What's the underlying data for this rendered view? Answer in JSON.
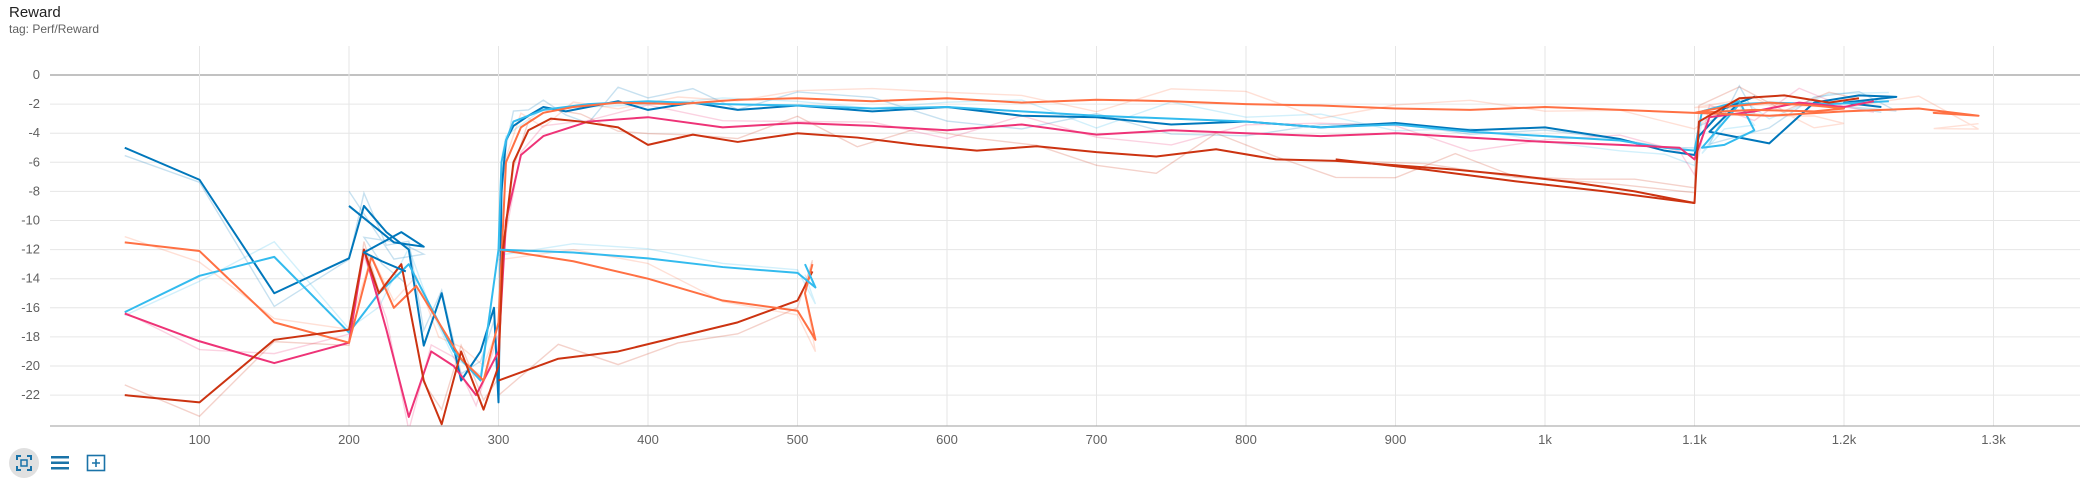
{
  "chart_data": {
    "type": "line",
    "title": "Reward",
    "subtitle": "tag: Perf/Reward",
    "xlim": [
      0,
      1360
    ],
    "ylim": [
      -24,
      2
    ],
    "x_ticks": [
      100,
      200,
      300,
      400,
      500,
      600,
      700,
      800,
      900,
      1000,
      1100,
      1200,
      1300
    ],
    "x_tick_labels": [
      "100",
      "200",
      "300",
      "400",
      "500",
      "600",
      "700",
      "800",
      "900",
      "1k",
      "1.1k",
      "1.2k",
      "1.3k"
    ],
    "y_ticks": [
      0,
      -2,
      -4,
      -6,
      -8,
      -10,
      -12,
      -14,
      -16,
      -18,
      -20,
      -22
    ],
    "y_tick_labels": [
      "0",
      "-2",
      "-4",
      "-6",
      "-8",
      "-10",
      "-12",
      "-14",
      "-16",
      "-18",
      "-20",
      "-22"
    ],
    "grid": true,
    "legend": "none",
    "series": [
      {
        "color": "#0077bb",
        "x": [
          50,
          100,
          150,
          200,
          210,
          225,
          240,
          250,
          262,
          275,
          288,
          297,
          300,
          302,
          305,
          310,
          320,
          330,
          345,
          360,
          380,
          400,
          430,
          460,
          500,
          550,
          600,
          650,
          700,
          750,
          800,
          850,
          900,
          950,
          1000,
          1050,
          1080,
          1100,
          1103,
          1120,
          1140,
          1130,
          1110,
          1150,
          1180,
          1210,
          1235,
          1200,
          1225
        ],
        "y": [
          -5,
          -7.2,
          -15,
          -12.6,
          -9,
          -10.8,
          -12,
          -18.6,
          -15,
          -21,
          -19,
          -16,
          -22.5,
          -8,
          -4.5,
          -3.5,
          -2.8,
          -2.2,
          -2.5,
          -2.2,
          -1.8,
          -2.4,
          -1.9,
          -2.4,
          -2.1,
          -2.5,
          -2.2,
          -2.8,
          -2.9,
          -3.4,
          -3.2,
          -3.6,
          -3.3,
          -3.8,
          -3.6,
          -4.4,
          -5.2,
          -5.5,
          -4.2,
          -2.3,
          -1.5,
          -1.9,
          -3.9,
          -4.7,
          -1.9,
          -1.4,
          -1.5,
          -1.9,
          -2.2
        ]
      },
      {
        "color": "#33bbee",
        "x": [
          50,
          100,
          150,
          200,
          220,
          240,
          255,
          270,
          288,
          300,
          302,
          305,
          310,
          330,
          360,
          400,
          450,
          500,
          550,
          600,
          650,
          700,
          750,
          800,
          850,
          900,
          950,
          1000,
          1050,
          1080,
          1100,
          1105,
          1130,
          1140,
          1120,
          1105,
          1130,
          1150,
          1190,
          1230
        ],
        "y": [
          -16.3,
          -13.8,
          -12.5,
          -17.7,
          -15,
          -13,
          -16,
          -19,
          -21,
          -12,
          -6,
          -4.5,
          -3.2,
          -2.4,
          -2.0,
          -1.8,
          -2.0,
          -2.1,
          -2.3,
          -2.2,
          -2.5,
          -2.8,
          -3.0,
          -3.2,
          -3.6,
          -3.4,
          -3.9,
          -4.2,
          -4.5,
          -5.0,
          -5.2,
          -2.5,
          -1.8,
          -3.8,
          -4.8,
          -5.0,
          -2.0,
          -1.9,
          -2.0,
          -1.8
        ]
      },
      {
        "color": "#ee3377",
        "x": [
          50,
          100,
          150,
          200,
          210,
          225,
          240,
          255,
          270,
          285,
          300,
          305,
          315,
          330,
          360,
          400,
          450,
          500,
          550,
          600,
          650,
          700,
          750,
          800,
          850,
          900,
          950,
          1000,
          1050,
          1090,
          1100,
          1110,
          1140,
          1170,
          1200,
          1220
        ],
        "y": [
          -16.4,
          -18.3,
          -19.8,
          -18.4,
          -12,
          -17.5,
          -23.5,
          -19,
          -20,
          -22,
          -19,
          -10,
          -5.5,
          -4.2,
          -3.2,
          -2.9,
          -3.6,
          -3.3,
          -3.5,
          -3.8,
          -3.4,
          -4.1,
          -3.8,
          -4.0,
          -4.2,
          -4.0,
          -4.3,
          -4.6,
          -4.8,
          -5.0,
          -5.8,
          -2.9,
          -2.5,
          -1.9,
          -2.2,
          -1.8
        ]
      },
      {
        "color": "#ff7043",
        "x": [
          50,
          100,
          150,
          200,
          215,
          230,
          245,
          260,
          275,
          290,
          300,
          305,
          315,
          330,
          350,
          380,
          420,
          460,
          500,
          550,
          600,
          650,
          700,
          750,
          800,
          850,
          900,
          950,
          1000,
          1050,
          1100,
          1120,
          1150,
          1180,
          1200,
          1180,
          1140,
          1100,
          1150,
          1200,
          1250,
          1290,
          1260,
          1290
        ],
        "y": [
          -11.5,
          -12.1,
          -17.0,
          -18.4,
          -12.5,
          -16,
          -14.5,
          -17,
          -19.5,
          -21,
          -17,
          -6,
          -3.6,
          -2.6,
          -2.2,
          -1.9,
          -2.0,
          -1.7,
          -1.6,
          -1.8,
          -1.6,
          -1.9,
          -1.7,
          -1.8,
          -2.0,
          -2.1,
          -2.3,
          -2.4,
          -2.2,
          -2.4,
          -2.6,
          -2.2,
          -1.9,
          -2.1,
          -2.3,
          -2.5,
          -2.4,
          -2.6,
          -2.8,
          -2.5,
          -2.3,
          -2.8,
          -2.6,
          -2.8
        ]
      },
      {
        "color": "#cc3311",
        "x": [
          50,
          100,
          150,
          200,
          210,
          220,
          235,
          250,
          262,
          275,
          290,
          300,
          303,
          310,
          320,
          335,
          355,
          380,
          400,
          430,
          460,
          500,
          540,
          580,
          620,
          660,
          700,
          740,
          780,
          820,
          860,
          900,
          940,
          980,
          1020,
          1060,
          1100,
          1103,
          1130,
          1160,
          1190,
          1210
        ],
        "y": [
          -22,
          -22.5,
          -18.2,
          -17.5,
          -12,
          -15,
          -13,
          -21,
          -24,
          -19,
          -23,
          -20,
          -12,
          -6,
          -3.8,
          -3.0,
          -3.2,
          -3.6,
          -4.8,
          -4.1,
          -4.6,
          -4.0,
          -4.3,
          -4.8,
          -5.2,
          -4.9,
          -5.3,
          -5.6,
          -5.1,
          -5.8,
          -5.9,
          -6.2,
          -6.5,
          -6.9,
          -7.4,
          -8.0,
          -8.8,
          -3.2,
          -1.6,
          -1.4,
          -1.9,
          -1.6
        ]
      },
      {
        "color": "#0077bb",
        "x": [
          200,
          230,
          250,
          235,
          210,
          222,
          238
        ],
        "y": [
          -9,
          -11.5,
          -11.8,
          -10.8,
          -12.2,
          -12.8,
          -13.5
        ]
      },
      {
        "color": "#cc3311",
        "x": [
          300,
          340,
          380,
          420,
          460,
          500,
          510
        ],
        "y": [
          -21,
          -19.5,
          -19.0,
          -18.0,
          -17.0,
          -15.5,
          -13.5
        ]
      },
      {
        "color": "#ff7043",
        "x": [
          300,
          350,
          400,
          450,
          500,
          512,
          505,
          510
        ],
        "y": [
          -12,
          -12.8,
          -14.0,
          -15.5,
          -16.2,
          -18.2,
          -15.0,
          -13.0
        ]
      },
      {
        "color": "#33bbee",
        "x": [
          300,
          350,
          400,
          450,
          500,
          512,
          505
        ],
        "y": [
          -12,
          -12.2,
          -12.6,
          -13.2,
          -13.6,
          -14.6,
          -13.0
        ]
      },
      {
        "color": "#cc3311",
        "x": [
          860,
          920,
          980,
          1040,
          1100
        ],
        "y": [
          -5.8,
          -6.5,
          -7.3,
          -8.0,
          -8.8
        ]
      }
    ]
  },
  "toolbar": {
    "buttons": [
      {
        "icon": "fit-to-data-icon",
        "active": true
      },
      {
        "icon": "log-scale-icon",
        "active": false
      },
      {
        "icon": "select-region-icon",
        "active": false
      }
    ]
  }
}
